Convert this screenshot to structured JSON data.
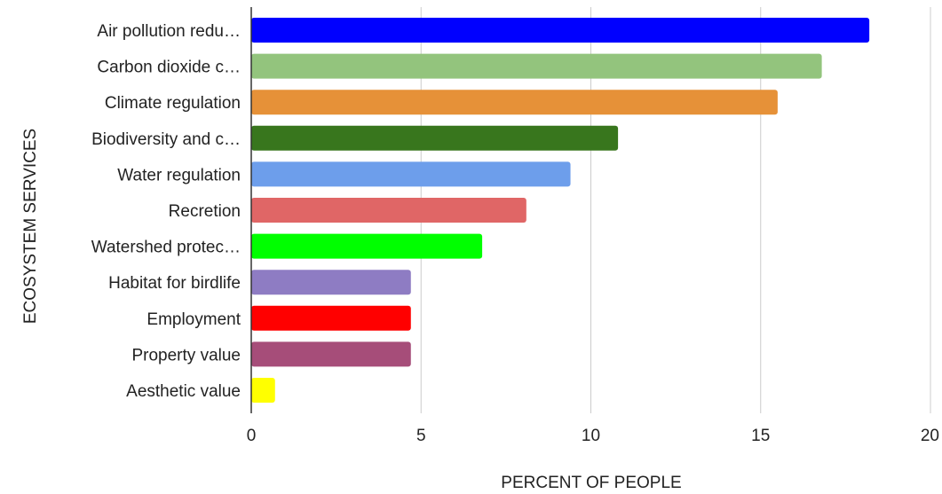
{
  "chart_data": {
    "type": "bar",
    "orientation": "horizontal",
    "categories": [
      "Air pollution redu…",
      "Carbon dioxide c…",
      "Climate regulation",
      "Biodiversity and c…",
      "Water regulation",
      "Recretion",
      "Watershed protec…",
      "Habitat for birdlife",
      "Employment",
      "Property value",
      "Aesthetic value"
    ],
    "values": [
      18.2,
      16.8,
      15.5,
      10.8,
      9.4,
      8.1,
      6.8,
      4.7,
      4.7,
      4.7,
      0.7
    ],
    "colors": [
      "#0000ff",
      "#93c47d",
      "#e69138",
      "#38761d",
      "#6d9eeb",
      "#e06666",
      "#00ff00",
      "#8e7cc3",
      "#ff0000",
      "#a64d79",
      "#ffff00"
    ],
    "xlabel": "PERCENT OF PEOPLE",
    "ylabel": "ECOSYSTEM SERVICES",
    "xlim": [
      0,
      20
    ],
    "xticks": [
      0,
      5,
      10,
      15,
      20
    ],
    "grid": "vertical"
  }
}
